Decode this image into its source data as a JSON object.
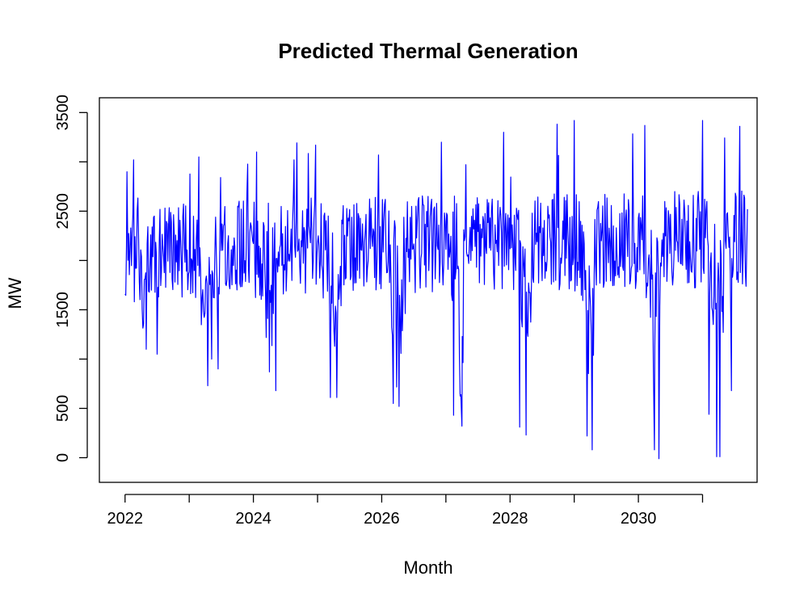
{
  "chart_data": {
    "type": "line",
    "title": "Predicted Thermal Generation",
    "xlabel": "Month",
    "ylabel": "MW",
    "xlim": [
      2021.6,
      2031.85
    ],
    "ylim": [
      -250,
      3650
    ],
    "x_ticks": [
      2022,
      2023,
      2024,
      2025,
      2026,
      2027,
      2028,
      2029,
      2030,
      2031
    ],
    "x_tick_labels": [
      "2022",
      "",
      "2024",
      "",
      "2026",
      "",
      "2028",
      "",
      "2030",
      ""
    ],
    "y_ticks": [
      0,
      500,
      1000,
      1500,
      2000,
      2500,
      3000,
      3500
    ],
    "y_tick_labels": [
      "0",
      "500",
      "",
      "1500",
      "",
      "2500",
      "",
      "3500"
    ],
    "grid": false,
    "frame": true,
    "series": [
      {
        "color": "#0000ff",
        "x_start": 2022.0,
        "x_end": 2031.7,
        "notable_points": [
          {
            "x": 2022.03,
            "y": 2900
          },
          {
            "x": 2022.33,
            "y": 1100
          },
          {
            "x": 2022.5,
            "y": 1050
          },
          {
            "x": 2023.15,
            "y": 3050
          },
          {
            "x": 2023.35,
            "y": 1000
          },
          {
            "x": 2023.45,
            "y": 900
          },
          {
            "x": 2024.05,
            "y": 3100
          },
          {
            "x": 2024.25,
            "y": 870
          },
          {
            "x": 2024.35,
            "y": 680
          },
          {
            "x": 2024.97,
            "y": 3170
          },
          {
            "x": 2025.2,
            "y": 610
          },
          {
            "x": 2025.3,
            "y": 610
          },
          {
            "x": 2025.95,
            "y": 3070
          },
          {
            "x": 2026.18,
            "y": 550
          },
          {
            "x": 2026.27,
            "y": 520
          },
          {
            "x": 2026.93,
            "y": 3200
          },
          {
            "x": 2027.12,
            "y": 430
          },
          {
            "x": 2027.25,
            "y": 320
          },
          {
            "x": 2027.9,
            "y": 3300
          },
          {
            "x": 2028.15,
            "y": 310
          },
          {
            "x": 2028.25,
            "y": 230
          },
          {
            "x": 2029.0,
            "y": 3420
          },
          {
            "x": 2029.2,
            "y": 220
          },
          {
            "x": 2029.28,
            "y": 80
          },
          {
            "x": 2030.1,
            "y": 3370
          },
          {
            "x": 2030.25,
            "y": 80
          },
          {
            "x": 2030.32,
            "y": -10
          },
          {
            "x": 2031.0,
            "y": 3420
          },
          {
            "x": 2031.1,
            "y": 440
          },
          {
            "x": 2031.22,
            "y": 10
          },
          {
            "x": 2031.27,
            "y": 10
          },
          {
            "x": 2031.45,
            "y": 680
          },
          {
            "x": 2031.58,
            "y": 3360
          }
        ]
      }
    ]
  }
}
